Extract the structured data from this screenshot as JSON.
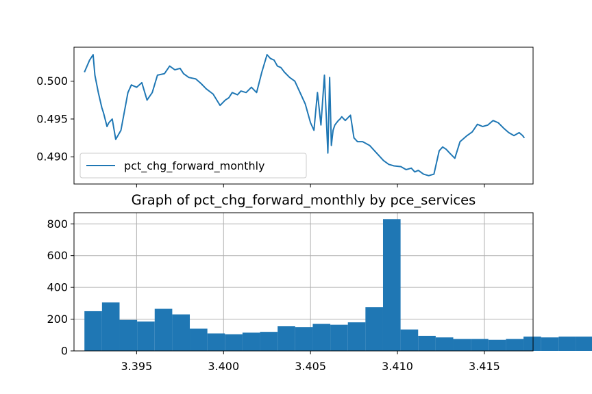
{
  "chart_data": [
    {
      "type": "line",
      "title": "",
      "xlabel": "",
      "ylabel": "",
      "xlim": [
        3.3914,
        3.4178
      ],
      "ylim": [
        0.4864,
        0.5045
      ],
      "yticks": [
        "0.490",
        "0.495",
        "0.500"
      ],
      "grid": false,
      "legend": "lower-left",
      "series": [
        {
          "name": "pct_chg_forward_monthly",
          "color": "#1f77b4",
          "x": [
            3.392,
            3.3923,
            3.3925,
            3.3926,
            3.3928,
            3.393,
            3.3931,
            3.3933,
            3.3934,
            3.3936,
            3.3938,
            3.3941,
            3.3945,
            3.3947,
            3.395,
            3.3953,
            3.3956,
            3.3959,
            3.3962,
            3.3966,
            3.3969,
            3.3972,
            3.3975,
            3.3977,
            3.398,
            3.3984,
            3.3987,
            3.399,
            3.3994,
            3.3998,
            3.4001,
            3.4003,
            3.4005,
            3.4008,
            3.401,
            3.4013,
            3.4016,
            3.4019,
            3.4022,
            3.4025,
            3.4027,
            3.4029,
            3.4031,
            3.4033,
            3.4035,
            3.4038,
            3.4041,
            3.4044,
            3.4047,
            3.405,
            3.4052,
            3.4054,
            3.4056,
            3.4058,
            3.406,
            3.4061,
            3.4062,
            3.4063,
            3.4064,
            3.4065,
            3.4066,
            3.4067,
            3.4068,
            3.407,
            3.4073,
            3.4075,
            3.4077,
            3.408,
            3.4084,
            3.4088,
            3.4092,
            3.4095,
            3.4098,
            3.4102,
            3.4105,
            3.4108,
            3.411,
            3.4112,
            3.4115,
            3.4118,
            3.4121,
            3.4124,
            3.4126,
            3.4128,
            3.413,
            3.4133,
            3.4136,
            3.414,
            3.4143,
            3.4146,
            3.4149,
            3.4152,
            3.4155,
            3.4158,
            3.4161,
            3.4164,
            3.4167,
            3.417,
            3.4172,
            3.4173
          ],
          "values": [
            0.5012,
            0.5028,
            0.5035,
            0.5008,
            0.4985,
            0.4965,
            0.4958,
            0.494,
            0.4945,
            0.495,
            0.4923,
            0.4935,
            0.4985,
            0.4995,
            0.4992,
            0.4998,
            0.4975,
            0.4985,
            0.5008,
            0.501,
            0.502,
            0.5015,
            0.5017,
            0.501,
            0.5005,
            0.5003,
            0.4997,
            0.499,
            0.4983,
            0.4968,
            0.4975,
            0.4978,
            0.4985,
            0.4982,
            0.4987,
            0.4985,
            0.4992,
            0.4985,
            0.5012,
            0.5035,
            0.503,
            0.5028,
            0.502,
            0.5018,
            0.5012,
            0.5005,
            0.5,
            0.4985,
            0.497,
            0.4945,
            0.4935,
            0.4985,
            0.4942,
            0.5008,
            0.4905,
            0.5005,
            0.4915,
            0.4935,
            0.4942,
            0.4945,
            0.4948,
            0.495,
            0.4953,
            0.4948,
            0.4955,
            0.4925,
            0.492,
            0.492,
            0.4915,
            0.4905,
            0.4895,
            0.489,
            0.4888,
            0.4887,
            0.4883,
            0.4885,
            0.488,
            0.4882,
            0.4877,
            0.4875,
            0.4877,
            0.4908,
            0.4913,
            0.491,
            0.4905,
            0.4898,
            0.492,
            0.4928,
            0.4933,
            0.4943,
            0.494,
            0.4942,
            0.4948,
            0.4945,
            0.4938,
            0.4932,
            0.4928,
            0.4932,
            0.4928,
            0.4925
          ]
        }
      ]
    },
    {
      "type": "bar",
      "title": "Graph of pct_chg_forward_monthly by pce_services",
      "xlabel": "",
      "ylabel": "",
      "xlim": [
        3.3914,
        3.4178
      ],
      "ylim": [
        0,
        870
      ],
      "xticks": [
        "3.395",
        "3.400",
        "3.405",
        "3.410",
        "3.415"
      ],
      "yticks": [
        "0",
        "200",
        "400",
        "600",
        "800"
      ],
      "grid": true,
      "color": "#1f77b4",
      "bin_start": 3.392,
      "bin_width": 0.00101,
      "values": [
        250,
        305,
        195,
        185,
        265,
        230,
        140,
        110,
        105,
        115,
        120,
        155,
        150,
        170,
        165,
        180,
        275,
        830,
        135,
        95,
        85,
        75,
        75,
        70,
        75,
        90,
        85,
        90,
        90,
        100
      ]
    }
  ]
}
